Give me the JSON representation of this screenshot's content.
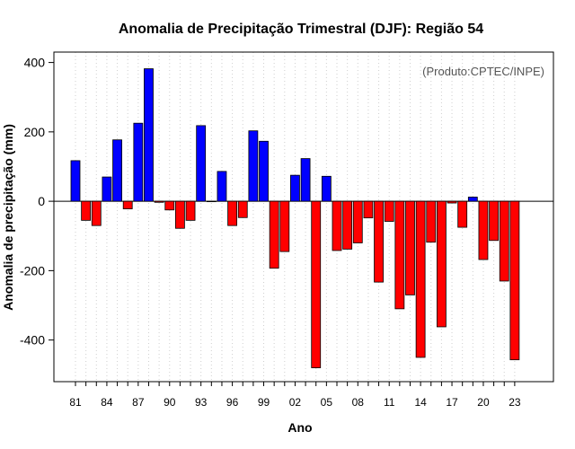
{
  "chart_data": {
    "type": "bar",
    "title": "Anomalia de Precipitação Trimestral (DJF): Região 54",
    "xlabel": "Ano",
    "ylabel": "Anomalia de precipitação (mm)",
    "annotation": "(Produto:CPTEC/INPE)",
    "ylim": [
      -520,
      430
    ],
    "yticks": [
      -400,
      -200,
      0,
      200,
      400
    ],
    "grid": "vertical dotted",
    "positive_color": "#0000ff",
    "negative_color": "#ff0000",
    "categories": [
      "1981",
      "1982",
      "1983",
      "1984",
      "1985",
      "1986",
      "1987",
      "1988",
      "1989",
      "1990",
      "1991",
      "1992",
      "1993",
      "1994",
      "1995",
      "1996",
      "1997",
      "1998",
      "1999",
      "2000",
      "2001",
      "2002",
      "2003",
      "2004",
      "2005",
      "2006",
      "2007",
      "2008",
      "2009",
      "2010",
      "2011",
      "2012",
      "2013",
      "2014",
      "2015",
      "2016",
      "2017",
      "2018",
      "2019",
      "2020",
      "2021",
      "2022",
      "2023"
    ],
    "xtick_labels": [
      {
        "year": 1981,
        "label": "81"
      },
      {
        "year": 1984,
        "label": "84"
      },
      {
        "year": 1987,
        "label": "87"
      },
      {
        "year": 1990,
        "label": "90"
      },
      {
        "year": 1993,
        "label": "93"
      },
      {
        "year": 1996,
        "label": "96"
      },
      {
        "year": 1999,
        "label": "99"
      },
      {
        "year": 2002,
        "label": "02"
      },
      {
        "year": 2005,
        "label": "05"
      },
      {
        "year": 2008,
        "label": "08"
      },
      {
        "year": 2011,
        "label": "11"
      },
      {
        "year": 2014,
        "label": "14"
      },
      {
        "year": 2017,
        "label": "17"
      },
      {
        "year": 2020,
        "label": "20"
      },
      {
        "year": 2023,
        "label": "23"
      }
    ],
    "series": [
      {
        "name": "DJF",
        "values": [
          117,
          -55,
          -70,
          70,
          177,
          -22,
          225,
          382,
          -3,
          -25,
          -78,
          -55,
          218,
          0,
          86,
          -70,
          -47,
          203,
          173,
          -193,
          -145,
          75,
          123,
          -480,
          72,
          -142,
          -138,
          -120,
          -48,
          -233,
          -58,
          -310,
          -270,
          -450,
          -118,
          -362,
          -5,
          -75,
          12,
          -168,
          -113,
          -230,
          -457
        ]
      }
    ]
  }
}
